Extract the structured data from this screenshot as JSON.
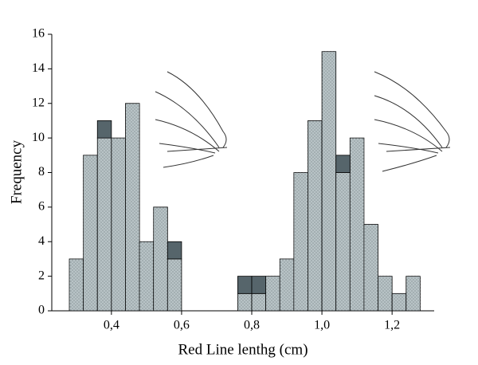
{
  "chart_data": {
    "type": "histogram",
    "xlabel": "Red Line lenthg (cm)",
    "ylabel": "Frequency",
    "bins": [
      0.28,
      0.32,
      0.36,
      0.4,
      0.44,
      0.48,
      0.52,
      0.56,
      0.6,
      0.64,
      0.68,
      0.72,
      0.76,
      0.8,
      0.84,
      0.88,
      0.92,
      0.96,
      1.0,
      1.04,
      1.08,
      1.12,
      1.16,
      1.2,
      1.24,
      1.28
    ],
    "series": [
      {
        "color": "#b8c3c6",
        "values": [
          3,
          9,
          10,
          10,
          12,
          4,
          6,
          3,
          0,
          0,
          0,
          0,
          1,
          1,
          2,
          3,
          8,
          11,
          15,
          8,
          10,
          5,
          2,
          1,
          2
        ]
      },
      {
        "color": "#56656b",
        "values": [
          0,
          0,
          1,
          0,
          0,
          0,
          0,
          1,
          0,
          0,
          0,
          0,
          1,
          1,
          0,
          0,
          0,
          0,
          0,
          1,
          0,
          0,
          0,
          0,
          0
        ]
      }
    ],
    "xlim": [
      0.23,
      1.32
    ],
    "xticks": [
      {
        "value": 0.4,
        "label": "0,4"
      },
      {
        "value": 0.6,
        "label": "0,6"
      },
      {
        "value": 0.8,
        "label": "0,8"
      },
      {
        "value": 1.0,
        "label": "1,0"
      },
      {
        "value": 1.2,
        "label": "1,2"
      }
    ],
    "ylim": [
      0,
      16
    ],
    "yticks": [
      0,
      2,
      4,
      6,
      8,
      10,
      12,
      14,
      16
    ]
  }
}
